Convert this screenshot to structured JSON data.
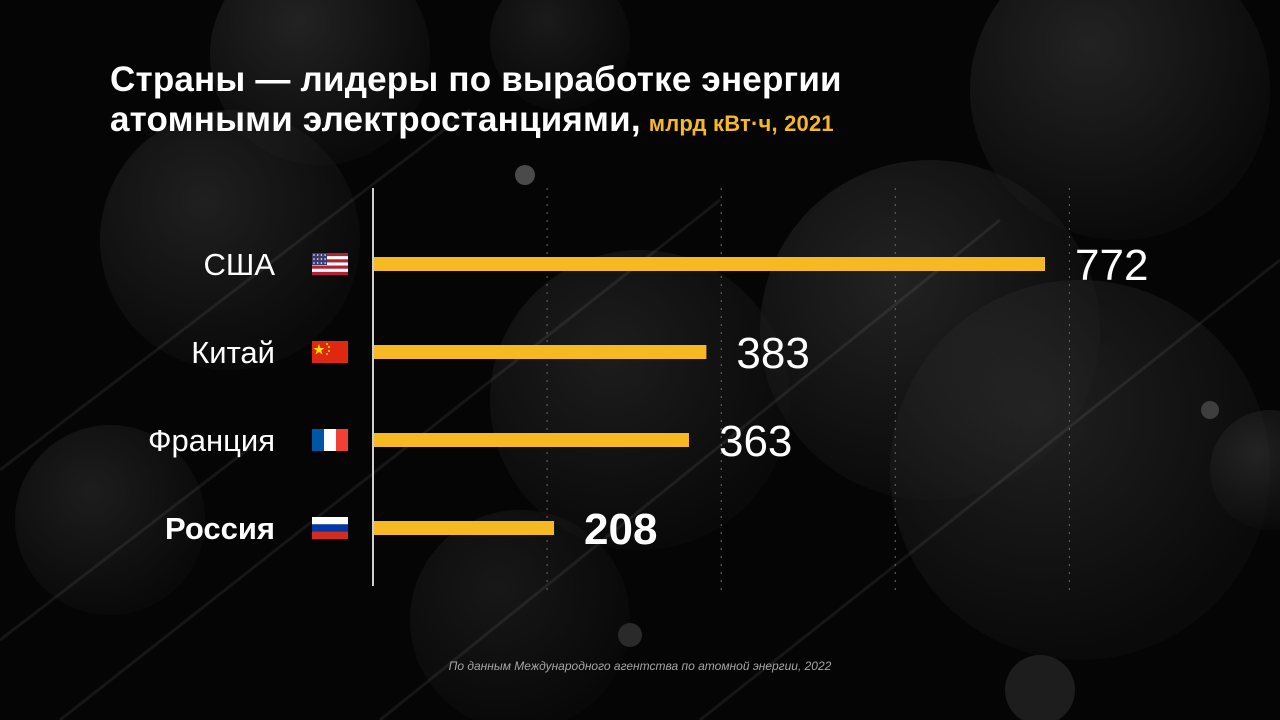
{
  "colors": {
    "bar": "#f5b921",
    "accent": "#f5b921",
    "background": "#050505",
    "text": "#ffffff"
  },
  "chart_data": {
    "type": "bar",
    "orientation": "horizontal",
    "title_line1": "Страны — лидеры по выработке энергии",
    "title_line2": "атомными электростанциями,",
    "subtitle": "млрд кВт·ч, 2021",
    "categories": [
      "США",
      "Китай",
      "Франция",
      "Россия"
    ],
    "values": [
      772,
      383,
      363,
      208
    ],
    "flags": [
      "us-flag-icon",
      "cn-flag-icon",
      "fr-flag-icon",
      "ru-flag-icon"
    ],
    "highlight": "Россия",
    "xlim": [
      0,
      800
    ],
    "grid": true,
    "xlabel": "",
    "ylabel": ""
  },
  "source": "По данным Международного агентства по атомной энергии, 2022"
}
